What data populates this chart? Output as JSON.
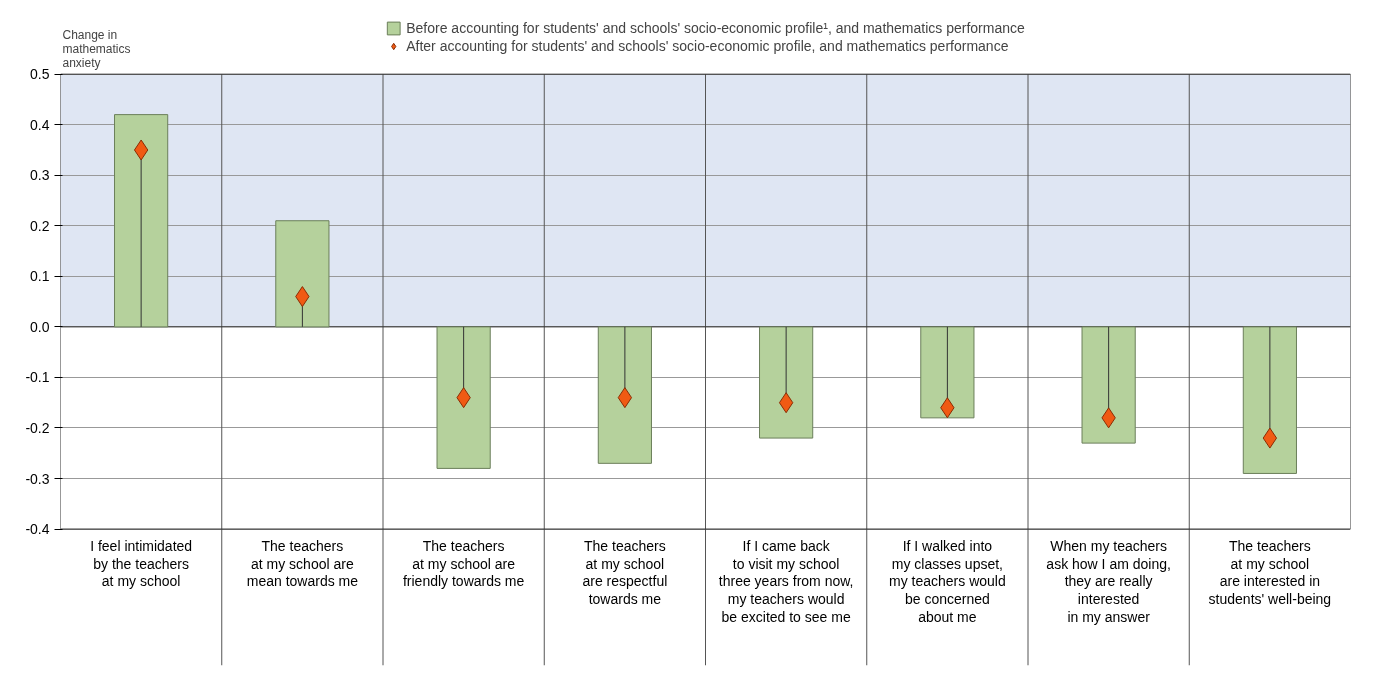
{
  "chart_data": {
    "type": "bar",
    "ylabel": "Change in\nmathematics\nanxiety",
    "categories": [
      "I feel intimidated\nby the teachers\nat my school",
      "The teachers\nat my school are\nmean towards me",
      "The teachers\nat my school are\nfriendly towards me",
      "The teachers\nat my school\nare respectful\ntowards me",
      "If I came back\nto visit my school\nthree years from now,\nmy teachers would\nbe excited to see me",
      "If I walked into\nmy classes upset,\nmy teachers would\nbe concerned\nabout me",
      "When my teachers\nask how I am doing,\nthey are really\ninterested\nin my answer",
      "The teachers\nat my school\nare interested in\nstudents' well-being"
    ],
    "series": [
      {
        "name": "Before accounting for students' and schools' socio-economic profile¹, and mathematics performance",
        "color": "#b5d19c",
        "values": [
          0.42,
          0.21,
          -0.28,
          -0.27,
          -0.22,
          -0.18,
          -0.23,
          -0.29
        ]
      },
      {
        "name": "After accounting for students' and schools' socio-economic profile, and mathematics performance",
        "type": "lollipop",
        "marker": "diamond",
        "color": "#f05a13",
        "values": [
          0.35,
          0.06,
          -0.14,
          -0.14,
          -0.15,
          -0.16,
          -0.18,
          -0.22
        ]
      }
    ],
    "ylim": [
      -0.4,
      0.5
    ],
    "yticks": [
      -0.4,
      -0.3,
      -0.2,
      -0.1,
      {
        "value": 0,
        "label": "0.0"
      },
      0.1,
      0.2,
      0.3,
      0.4,
      0.5
    ],
    "bands": [
      {
        "axis": "y",
        "from": 0,
        "to": 0.5,
        "color": "#dfe6f3"
      }
    ],
    "grid": true,
    "legend": "top"
  }
}
